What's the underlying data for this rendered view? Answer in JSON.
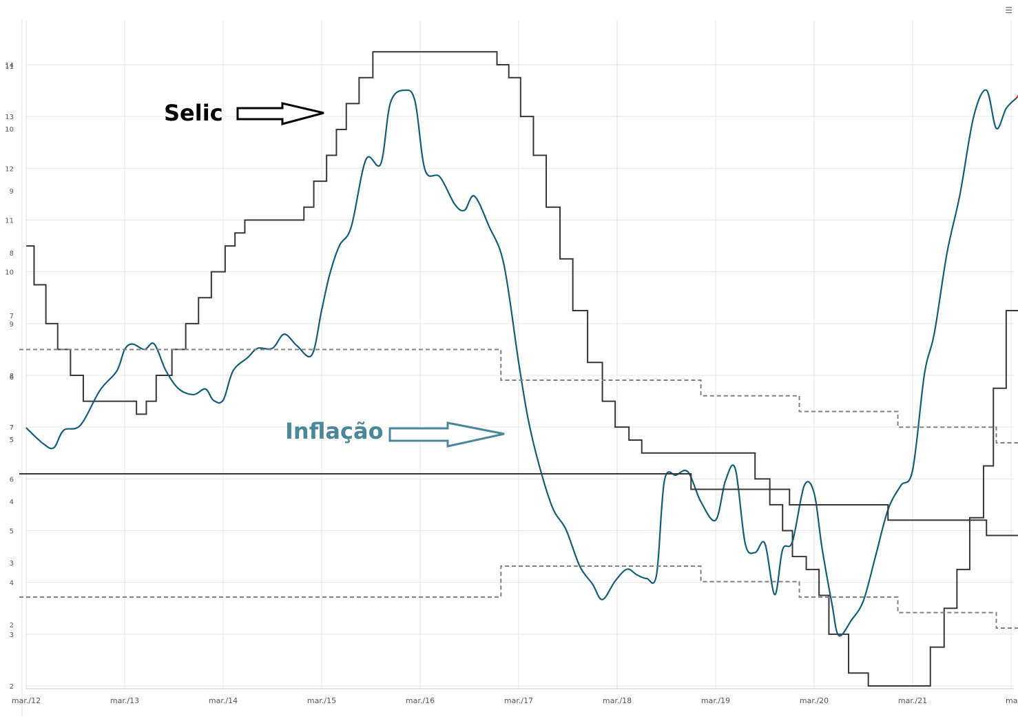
{
  "menu_icon": "☰",
  "chart_data": {
    "type": "line",
    "title": "",
    "xlabel": "",
    "ylabel": "",
    "x_ticks": [
      "mar./12",
      "mar./13",
      "mar./14",
      "mar./15",
      "mar./16",
      "mar./17",
      "mar./18",
      "mar./19",
      "mar./20",
      "mar./21",
      "mar."
    ],
    "y_axes": [
      {
        "name": "selic-axis",
        "ticks": [
          "2",
          "3",
          "4",
          "5",
          "6",
          "7",
          "8",
          "9",
          "10",
          "11",
          "12",
          "13",
          "14"
        ],
        "ylim": [
          2,
          14.5
        ]
      },
      {
        "name": "inflation-axis",
        "ticks": [
          "2",
          "3",
          "4",
          "5",
          "6",
          "7",
          "8",
          "9",
          "10",
          "11"
        ],
        "ylim": [
          1.9,
          11.3
        ]
      }
    ],
    "grid": true,
    "annotations": [
      {
        "text": "Selic",
        "color": "#000000"
      },
      {
        "text": "Inflação",
        "color": "#4a8799"
      }
    ],
    "series": [
      {
        "key": "selic",
        "color": "#3a3338",
        "style": "step",
        "points": [
          [
            2012.0,
            10.5
          ],
          [
            2012.08,
            9.75
          ],
          [
            2012.2,
            9.0
          ],
          [
            2012.32,
            8.5
          ],
          [
            2012.45,
            8.0
          ],
          [
            2012.58,
            7.5
          ],
          [
            2013.12,
            7.25
          ],
          [
            2013.22,
            7.5
          ],
          [
            2013.32,
            8.0
          ],
          [
            2013.48,
            8.5
          ],
          [
            2013.62,
            9.0
          ],
          [
            2013.75,
            9.5
          ],
          [
            2013.88,
            10.0
          ],
          [
            2014.02,
            10.5
          ],
          [
            2014.12,
            10.75
          ],
          [
            2014.22,
            11.0
          ],
          [
            2014.82,
            11.25
          ],
          [
            2014.92,
            11.75
          ],
          [
            2015.05,
            12.25
          ],
          [
            2015.15,
            12.75
          ],
          [
            2015.25,
            13.25
          ],
          [
            2015.38,
            13.75
          ],
          [
            2015.52,
            14.25
          ],
          [
            2016.78,
            14.0
          ],
          [
            2016.9,
            13.75
          ],
          [
            2017.02,
            13.0
          ],
          [
            2017.15,
            12.25
          ],
          [
            2017.28,
            11.25
          ],
          [
            2017.42,
            10.25
          ],
          [
            2017.55,
            9.25
          ],
          [
            2017.7,
            8.25
          ],
          [
            2017.85,
            7.5
          ],
          [
            2017.98,
            7.0
          ],
          [
            2018.12,
            6.75
          ],
          [
            2018.25,
            6.5
          ],
          [
            2019.4,
            6.0
          ],
          [
            2019.55,
            5.5
          ],
          [
            2019.68,
            5.0
          ],
          [
            2019.78,
            4.5
          ],
          [
            2019.92,
            4.25
          ],
          [
            2020.05,
            3.75
          ],
          [
            2020.15,
            3.0
          ],
          [
            2020.35,
            2.25
          ],
          [
            2020.55,
            2.0
          ],
          [
            21.2,
            0
          ],
          [
            2021.18,
            2.75
          ],
          [
            2021.32,
            3.5
          ],
          [
            2021.45,
            4.25
          ],
          [
            2021.58,
            5.25
          ],
          [
            2021.72,
            6.25
          ],
          [
            2021.82,
            7.75
          ],
          [
            2021.95,
            9.25
          ],
          [
            2022.12,
            10.75
          ],
          [
            2022.25,
            11.75
          ]
        ]
      },
      {
        "key": "inflation",
        "color": "#135e75",
        "style": "smooth",
        "points": [
          [
            2012.0,
            5.24
          ],
          [
            2012.17,
            4.99
          ],
          [
            2012.28,
            4.92
          ],
          [
            2012.38,
            5.2
          ],
          [
            2012.55,
            5.28
          ],
          [
            2012.75,
            5.84
          ],
          [
            2012.92,
            6.15
          ],
          [
            2013.0,
            6.5
          ],
          [
            2013.08,
            6.59
          ],
          [
            2013.2,
            6.5
          ],
          [
            2013.3,
            6.59
          ],
          [
            2013.42,
            6.15
          ],
          [
            2013.55,
            5.86
          ],
          [
            2013.7,
            5.77
          ],
          [
            2013.82,
            5.86
          ],
          [
            2013.9,
            5.68
          ],
          [
            2014.0,
            5.68
          ],
          [
            2014.1,
            6.15
          ],
          [
            2014.25,
            6.37
          ],
          [
            2014.35,
            6.52
          ],
          [
            2014.5,
            6.52
          ],
          [
            2014.62,
            6.75
          ],
          [
            2014.75,
            6.56
          ],
          [
            2014.9,
            6.41
          ],
          [
            2015.0,
            7.14
          ],
          [
            2015.08,
            7.7
          ],
          [
            2015.18,
            8.17
          ],
          [
            2015.3,
            8.47
          ],
          [
            2015.45,
            9.56
          ],
          [
            2015.6,
            9.49
          ],
          [
            2015.7,
            10.48
          ],
          [
            2015.85,
            10.67
          ],
          [
            2015.95,
            10.48
          ],
          [
            2016.05,
            9.39
          ],
          [
            2016.2,
            9.28
          ],
          [
            2016.35,
            8.84
          ],
          [
            2016.45,
            8.74
          ],
          [
            2016.55,
            8.97
          ],
          [
            2016.7,
            8.48
          ],
          [
            2016.85,
            7.87
          ],
          [
            2017.0,
            6.29
          ],
          [
            2017.1,
            5.35
          ],
          [
            2017.22,
            4.57
          ],
          [
            2017.35,
            3.93
          ],
          [
            2017.48,
            3.6
          ],
          [
            2017.62,
            3.0
          ],
          [
            2017.75,
            2.71
          ],
          [
            2017.85,
            2.46
          ],
          [
            2017.98,
            2.76
          ],
          [
            2018.1,
            2.95
          ],
          [
            2018.2,
            2.86
          ],
          [
            2018.3,
            2.8
          ],
          [
            2018.4,
            2.86
          ],
          [
            2018.48,
            4.39
          ],
          [
            2018.6,
            4.48
          ],
          [
            2018.72,
            4.53
          ],
          [
            2018.85,
            4.05
          ],
          [
            2019.0,
            3.75
          ],
          [
            2019.1,
            4.39
          ],
          [
            2019.2,
            4.58
          ],
          [
            2019.3,
            3.37
          ],
          [
            2019.4,
            3.22
          ],
          [
            2019.5,
            3.37
          ],
          [
            2019.6,
            2.54
          ],
          [
            2019.68,
            3.27
          ],
          [
            2019.78,
            3.4
          ],
          [
            2019.9,
            4.31
          ],
          [
            2020.0,
            4.19
          ],
          [
            2020.08,
            3.3
          ],
          [
            2020.18,
            2.4
          ],
          [
            2020.25,
            1.88
          ],
          [
            2020.38,
            2.13
          ],
          [
            2020.5,
            2.44
          ],
          [
            2020.62,
            3.14
          ],
          [
            2020.75,
            3.92
          ],
          [
            2020.88,
            4.31
          ],
          [
            2021.0,
            4.56
          ],
          [
            2021.12,
            6.1
          ],
          [
            2021.22,
            6.76
          ],
          [
            2021.35,
            8.06
          ],
          [
            2021.48,
            8.99
          ],
          [
            2021.62,
            10.25
          ],
          [
            2021.75,
            10.67
          ],
          [
            2021.85,
            10.06
          ],
          [
            2021.95,
            10.38
          ],
          [
            2022.05,
            10.54
          ]
        ]
      },
      {
        "key": "inflation-latest",
        "color": "#b02a2a",
        "style": "smooth",
        "points": [
          [
            2022.05,
            10.54
          ],
          [
            2022.12,
            10.67
          ]
        ]
      },
      {
        "key": "inflation-target",
        "color": "#3a3338",
        "style": "step",
        "points": [
          [
            2011.93,
            4.5
          ],
          [
            2017.0,
            4.5
          ],
          [
            2018.75,
            4.25
          ],
          [
            2019.75,
            4.0
          ],
          [
            2020.75,
            3.75
          ],
          [
            2021.75,
            3.5
          ],
          [
            2022.12,
            3.5
          ]
        ]
      },
      {
        "key": "target-upper",
        "color": "#808080",
        "style": "dashed-step",
        "points": [
          [
            2011.93,
            6.5
          ],
          [
            2016.75,
            6.5
          ],
          [
            2016.82,
            6.0
          ],
          [
            2018.75,
            6.0
          ],
          [
            2018.85,
            5.75
          ],
          [
            2019.75,
            5.75
          ],
          [
            2019.85,
            5.5
          ],
          [
            2020.75,
            5.5
          ],
          [
            2020.85,
            5.25
          ],
          [
            2021.75,
            5.25
          ],
          [
            2021.85,
            5.0
          ],
          [
            2022.12,
            5.0
          ]
        ]
      },
      {
        "key": "target-lower",
        "color": "#808080",
        "style": "dashed-step",
        "points": [
          [
            2011.93,
            2.5
          ],
          [
            2016.75,
            2.5
          ],
          [
            2016.82,
            3.0
          ],
          [
            2018.75,
            3.0
          ],
          [
            2018.85,
            2.75
          ],
          [
            2019.75,
            2.75
          ],
          [
            2019.85,
            2.5
          ],
          [
            2020.75,
            2.5
          ],
          [
            2020.85,
            2.25
          ],
          [
            2021.75,
            2.25
          ],
          [
            2021.85,
            2.0
          ],
          [
            2022.12,
            2.0
          ]
        ]
      }
    ]
  }
}
